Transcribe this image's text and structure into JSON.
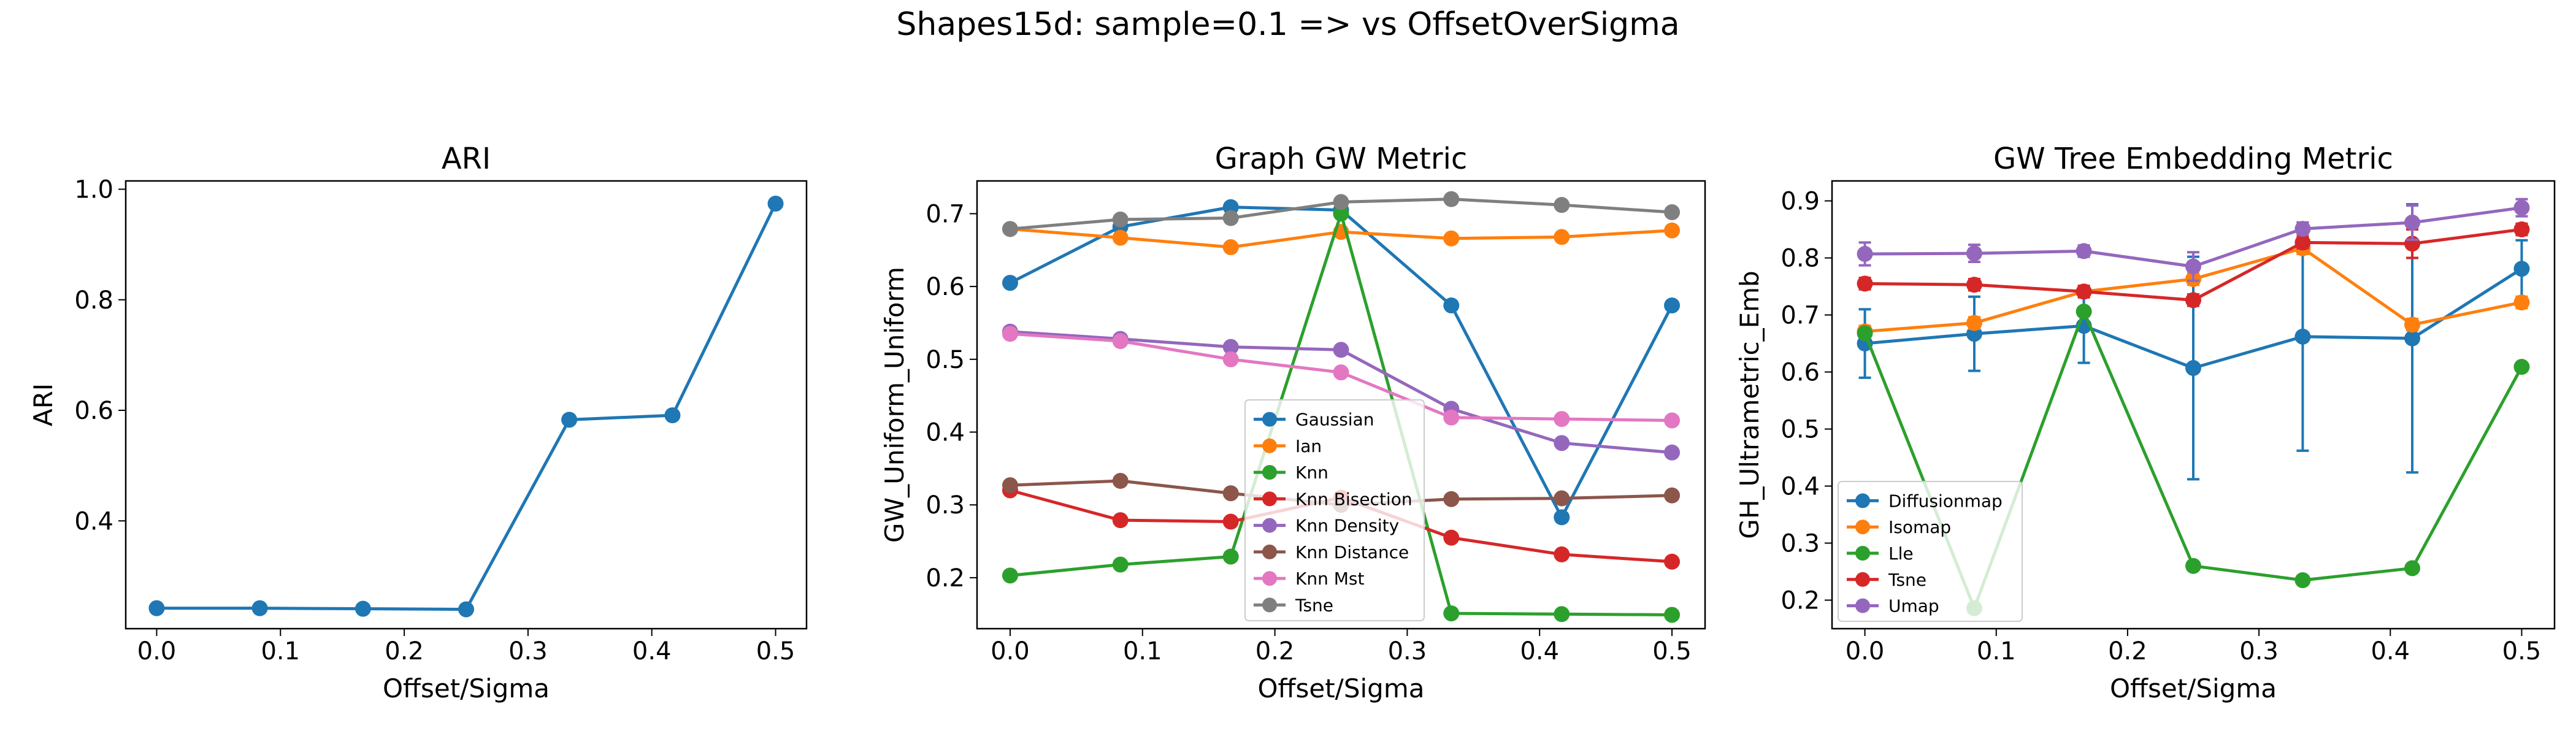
{
  "suptitle": "Shapes15d: sample=0.1 => vs OffsetOverSigma",
  "colors": {
    "blue": "#1f77b4",
    "orange": "#ff7f0e",
    "green": "#2ca02c",
    "red": "#d62728",
    "purple": "#9467bd",
    "brown": "#8c564b",
    "pink": "#e377c2",
    "gray": "#7f7f7f"
  },
  "chart_data": [
    {
      "type": "line",
      "title": "ARI",
      "xlabel": "Offset/Sigma",
      "ylabel": "ARI",
      "xlim": [
        -0.025,
        0.525
      ],
      "ylim": [
        0.205,
        1.015
      ],
      "xticks": [
        0.0,
        0.1,
        0.2,
        0.3,
        0.4,
        0.5
      ],
      "xtick_labels": [
        "0.0",
        "0.1",
        "0.2",
        "0.3",
        "0.4",
        "0.5"
      ],
      "yticks": [
        0.4,
        0.6,
        0.8,
        1.0
      ],
      "ytick_labels": [
        "0.4",
        "0.6",
        "0.8",
        "1.0"
      ],
      "x": [
        0.0,
        0.0833,
        0.1667,
        0.25,
        0.3333,
        0.4167,
        0.5
      ],
      "series": [
        {
          "name": "ARI",
          "color": "#1f77b4",
          "values": [
            0.242,
            0.242,
            0.241,
            0.24,
            0.583,
            0.591,
            0.974
          ]
        }
      ],
      "legend": null
    },
    {
      "type": "line",
      "title": "Graph GW Metric",
      "xlabel": "Offset/Sigma",
      "ylabel": "GW_Uniform_Uniform",
      "xlim": [
        -0.025,
        0.525
      ],
      "ylim": [
        0.13,
        0.745
      ],
      "xticks": [
        0.0,
        0.1,
        0.2,
        0.3,
        0.4,
        0.5
      ],
      "xtick_labels": [
        "0.0",
        "0.1",
        "0.2",
        "0.3",
        "0.4",
        "0.5"
      ],
      "yticks": [
        0.2,
        0.3,
        0.4,
        0.5,
        0.6,
        0.7
      ],
      "ytick_labels": [
        "0.2",
        "0.3",
        "0.4",
        "0.5",
        "0.6",
        "0.7"
      ],
      "x": [
        0.0,
        0.0833,
        0.1667,
        0.25,
        0.3333,
        0.4167,
        0.5
      ],
      "series": [
        {
          "name": "Gaussian",
          "color": "#1f77b4",
          "values": [
            0.605,
            0.682,
            0.709,
            0.705,
            0.574,
            0.283,
            0.574
          ]
        },
        {
          "name": "Ian",
          "color": "#ff7f0e",
          "values": [
            0.679,
            0.667,
            0.654,
            0.675,
            0.666,
            0.668,
            0.677
          ]
        },
        {
          "name": "Knn",
          "color": "#2ca02c",
          "values": [
            0.203,
            0.218,
            0.229,
            0.7,
            0.151,
            0.15,
            0.149
          ]
        },
        {
          "name": "Knn Bisection",
          "color": "#d62728",
          "values": [
            0.32,
            0.279,
            0.277,
            0.31,
            0.255,
            0.232,
            0.222
          ]
        },
        {
          "name": "Knn Density",
          "color": "#9467bd",
          "values": [
            0.538,
            0.528,
            0.517,
            0.513,
            0.432,
            0.385,
            0.372
          ]
        },
        {
          "name": "Knn Distance",
          "color": "#8c564b",
          "values": [
            0.327,
            0.333,
            0.316,
            0.3,
            0.308,
            0.309,
            0.313
          ]
        },
        {
          "name": "Knn Mst",
          "color": "#e377c2",
          "values": [
            0.535,
            0.525,
            0.5,
            0.482,
            0.42,
            0.418,
            0.416
          ]
        },
        {
          "name": "Tsne",
          "color": "#7f7f7f",
          "values": [
            0.679,
            0.692,
            0.694,
            0.716,
            0.72,
            0.712,
            0.702
          ]
        }
      ],
      "legend": "lower center"
    },
    {
      "type": "line",
      "title": "GW Tree Embedding Metric",
      "xlabel": "Offset/Sigma",
      "ylabel": "GH_Ultrametric_Emb",
      "xlim": [
        -0.025,
        0.525
      ],
      "ylim": [
        0.15,
        0.935
      ],
      "xticks": [
        0.0,
        0.1,
        0.2,
        0.3,
        0.4,
        0.5
      ],
      "xtick_labels": [
        "0.0",
        "0.1",
        "0.2",
        "0.3",
        "0.4",
        "0.5"
      ],
      "yticks": [
        0.2,
        0.3,
        0.4,
        0.5,
        0.6,
        0.7,
        0.8,
        0.9
      ],
      "ytick_labels": [
        "0.2",
        "0.3",
        "0.4",
        "0.5",
        "0.6",
        "0.7",
        "0.8",
        "0.9"
      ],
      "x": [
        0.0,
        0.0833,
        0.1667,
        0.25,
        0.3333,
        0.4167,
        0.5
      ],
      "series": [
        {
          "name": "Diffusionmap",
          "color": "#1f77b4",
          "values": [
            0.65,
            0.667,
            0.681,
            0.607,
            0.662,
            0.659,
            0.781
          ],
          "errors": [
            0.06,
            0.065,
            0.065,
            0.195,
            0.2,
            0.235,
            0.05
          ]
        },
        {
          "name": "Isomap",
          "color": "#ff7f0e",
          "values": [
            0.671,
            0.686,
            0.741,
            0.763,
            0.817,
            0.683,
            0.722
          ],
          "errors": [
            0.01,
            0.01,
            0.01,
            0.01,
            0.01,
            0.01,
            0.01
          ]
        },
        {
          "name": "Lle",
          "color": "#2ca02c",
          "values": [
            0.668,
            0.186,
            0.706,
            0.26,
            0.235,
            0.256,
            0.609
          ],
          "errors": [
            0,
            0,
            0,
            0,
            0,
            0,
            0
          ]
        },
        {
          "name": "Tsne",
          "color": "#d62728",
          "values": [
            0.755,
            0.753,
            0.741,
            0.726,
            0.827,
            0.825,
            0.85
          ],
          "errors": [
            0.01,
            0.01,
            0.01,
            0.01,
            0.01,
            0.025,
            0.01
          ]
        },
        {
          "name": "Umap",
          "color": "#9467bd",
          "values": [
            0.807,
            0.808,
            0.812,
            0.785,
            0.851,
            0.862,
            0.888
          ],
          "errors": [
            0.02,
            0.015,
            0.01,
            0.025,
            0.01,
            0.03,
            0.015
          ]
        }
      ],
      "legend": "lower left"
    }
  ]
}
